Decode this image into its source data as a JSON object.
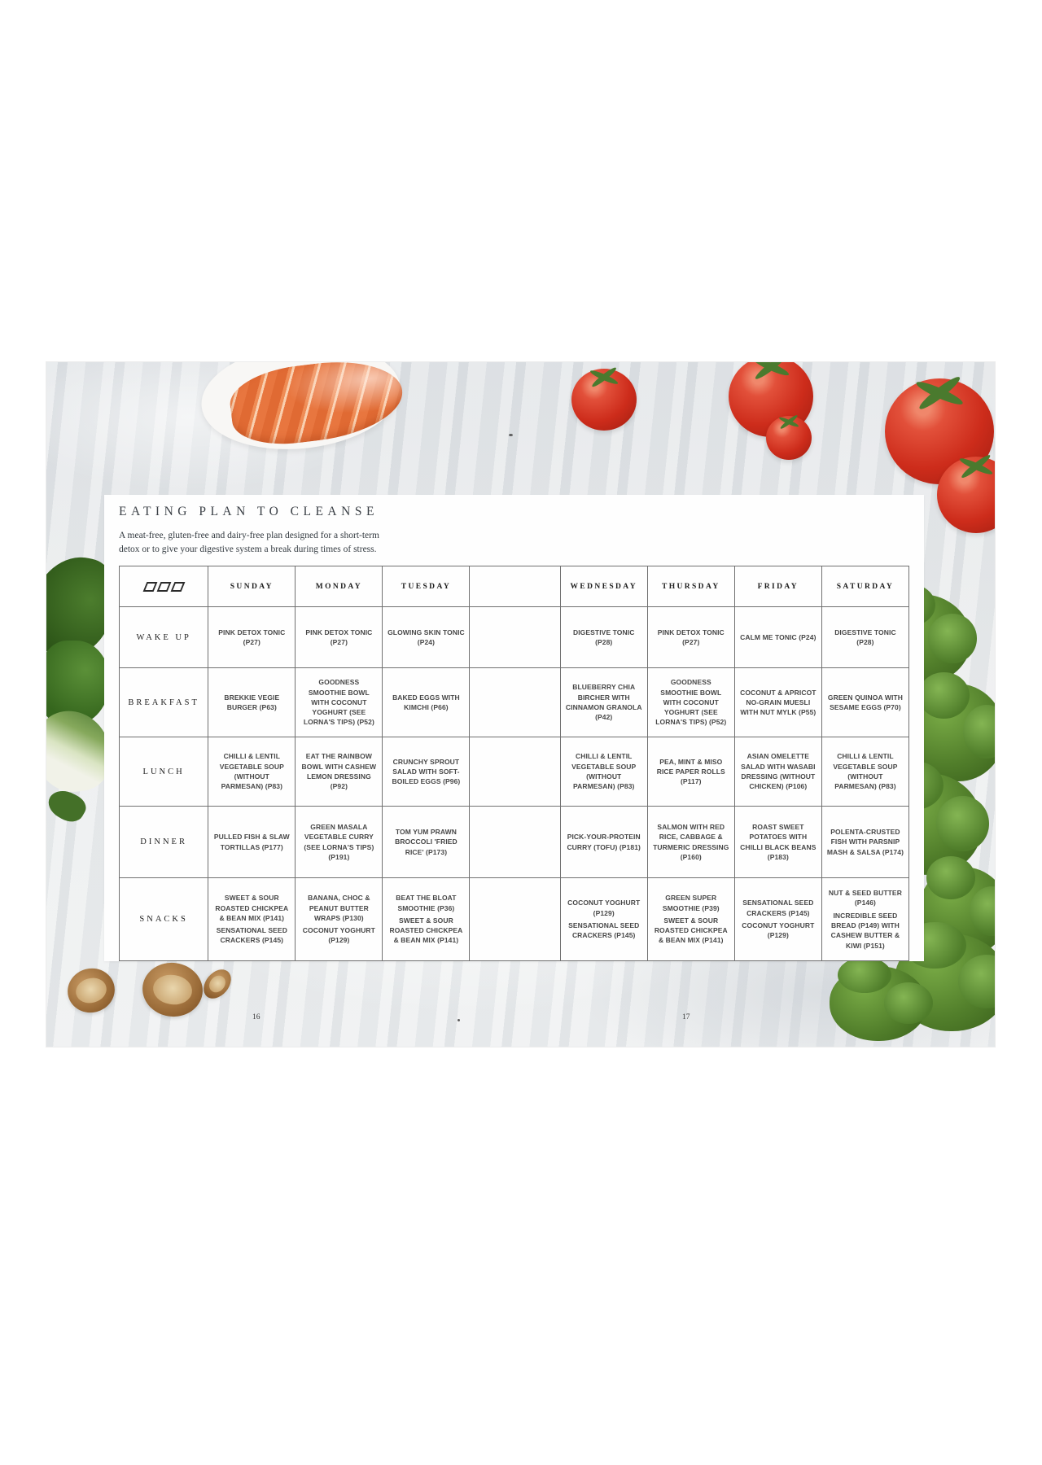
{
  "book": {
    "title": "EATING PLAN TO CLEANSE",
    "subtitle": "A meat-free, gluten-free and dairy-free plan designed for a short-term detox or to give your digestive system a break during times of stress.",
    "page_number_left": "16",
    "page_number_right": "17"
  },
  "icons": {
    "brand_logo": "three-skewed-square-outlines"
  },
  "colors": {
    "table_border": "#707070",
    "text_dark": "#474747",
    "tomato_red": "#cd2c1b",
    "salmon_orange": "#e8763f",
    "broccoli_green": "#527f2b"
  },
  "plan_table": {
    "day_headers": [
      "SUNDAY",
      "MONDAY",
      "TUESDAY",
      "",
      "WEDNESDAY",
      "THURSDAY",
      "FRIDAY",
      "SATURDAY"
    ],
    "rows": [
      {
        "label": "WAKE UP",
        "cells": [
          [
            "PINK DETOX TONIC (P27)"
          ],
          [
            "PINK DETOX TONIC (P27)"
          ],
          [
            "GLOWING SKIN TONIC (P24)"
          ],
          [],
          [
            "DIGESTIVE TONIC (P28)"
          ],
          [
            "PINK DETOX TONIC (P27)"
          ],
          [
            "CALM ME TONIC (P24)"
          ],
          [
            "DIGESTIVE TONIC (P28)"
          ]
        ]
      },
      {
        "label": "BREAKFAST",
        "cells": [
          [
            "BREKKIE VEGIE BURGER (P63)"
          ],
          [
            "GOODNESS SMOOTHIE BOWL WITH COCONUT YOGHURT (SEE LORNA'S TIPS) (P52)"
          ],
          [
            "BAKED EGGS WITH KIMCHI (P66)"
          ],
          [],
          [
            "BLUEBERRY CHIA BIRCHER WITH CINNAMON GRANOLA (P42)"
          ],
          [
            "GOODNESS SMOOTHIE BOWL WITH COCONUT YOGHURT (SEE LORNA'S TIPS) (P52)"
          ],
          [
            "COCONUT & APRICOT NO-GRAIN MUESLI WITH NUT MYLK (P55)"
          ],
          [
            "GREEN QUINOA WITH SESAME EGGS (P70)"
          ]
        ]
      },
      {
        "label": "LUNCH",
        "cells": [
          [
            "CHILLI & LENTIL VEGETABLE SOUP (WITHOUT PARMESAN) (P83)"
          ],
          [
            "EAT THE RAINBOW BOWL WITH CASHEW LEMON DRESSING (P92)"
          ],
          [
            "CRUNCHY SPROUT SALAD WITH SOFT-BOILED EGGS (P96)"
          ],
          [],
          [
            "CHILLI & LENTIL VEGETABLE SOUP (WITHOUT PARMESAN) (P83)"
          ],
          [
            "PEA, MINT & MISO RICE PAPER ROLLS (P117)"
          ],
          [
            "ASIAN OMELETTE SALAD WITH WASABI DRESSING (WITHOUT CHICKEN) (P106)"
          ],
          [
            "CHILLI & LENTIL VEGETABLE SOUP (WITHOUT PARMESAN) (P83)"
          ]
        ]
      },
      {
        "label": "DINNER",
        "cells": [
          [
            "PULLED FISH & SLAW TORTILLAS (P177)"
          ],
          [
            "GREEN MASALA VEGETABLE CURRY (SEE LORNA'S TIPS) (P191)"
          ],
          [
            "TOM YUM PRAWN BROCCOLI 'FRIED RICE' (P173)"
          ],
          [],
          [
            "PICK-YOUR-PROTEIN CURRY (TOFU) (P181)"
          ],
          [
            "SALMON WITH RED RICE, CABBAGE & TURMERIC DRESSING (P160)"
          ],
          [
            "ROAST SWEET POTATOES WITH CHILLI BLACK BEANS (P183)"
          ],
          [
            "POLENTA-CRUSTED FISH WITH PARSNIP MASH & SALSA (P174)"
          ]
        ]
      },
      {
        "label": "SNACKS",
        "cells": [
          [
            "SWEET & SOUR ROASTED CHICKPEA & BEAN MIX (P141)",
            "SENSATIONAL SEED CRACKERS (P145)"
          ],
          [
            "BANANA, CHOC & PEANUT BUTTER WRAPS (P130)",
            "COCONUT YOGHURT (P129)"
          ],
          [
            "BEAT THE BLOAT SMOOTHIE (P36)",
            "SWEET & SOUR ROASTED CHICKPEA & BEAN MIX (P141)"
          ],
          [],
          [
            "COCONUT YOGHURT (P129)",
            "SENSATIONAL SEED CRACKERS (P145)"
          ],
          [
            "GREEN SUPER SMOOTHIE (P39)",
            "SWEET & SOUR ROASTED CHICKPEA & BEAN MIX (P141)"
          ],
          [
            "SENSATIONAL SEED CRACKERS (P145)",
            "COCONUT YOGHURT (P129)"
          ],
          [
            "NUT & SEED BUTTER (P146)",
            "INCREDIBLE SEED BREAD (P149) WITH CASHEW BUTTER & KIWI (P151)"
          ]
        ]
      }
    ]
  }
}
